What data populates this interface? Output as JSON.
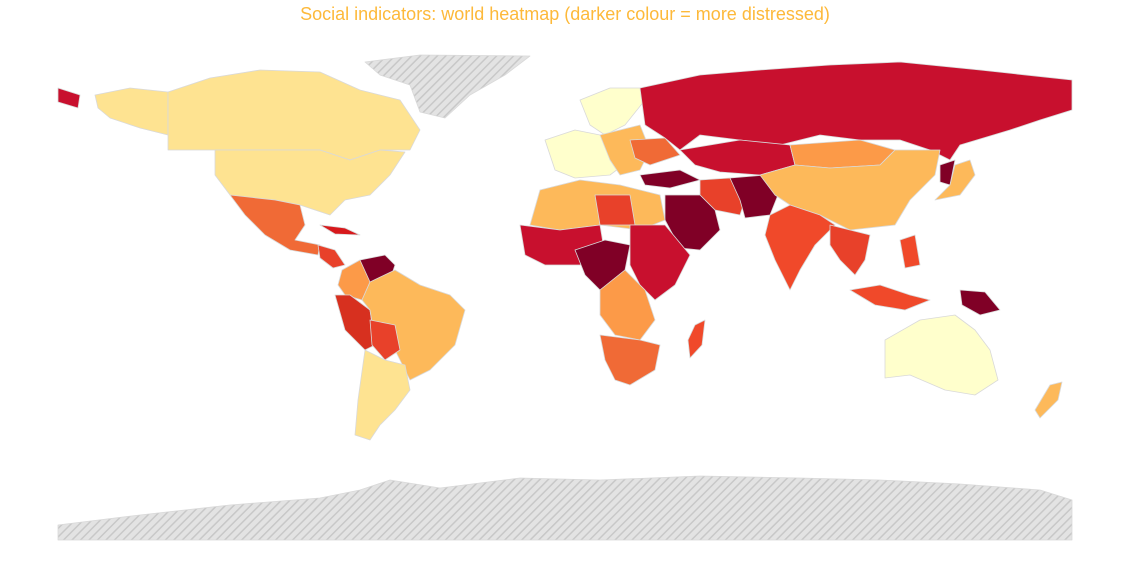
{
  "title": "Social indicators: world heatmap (darker colour = more distressed)"
}
